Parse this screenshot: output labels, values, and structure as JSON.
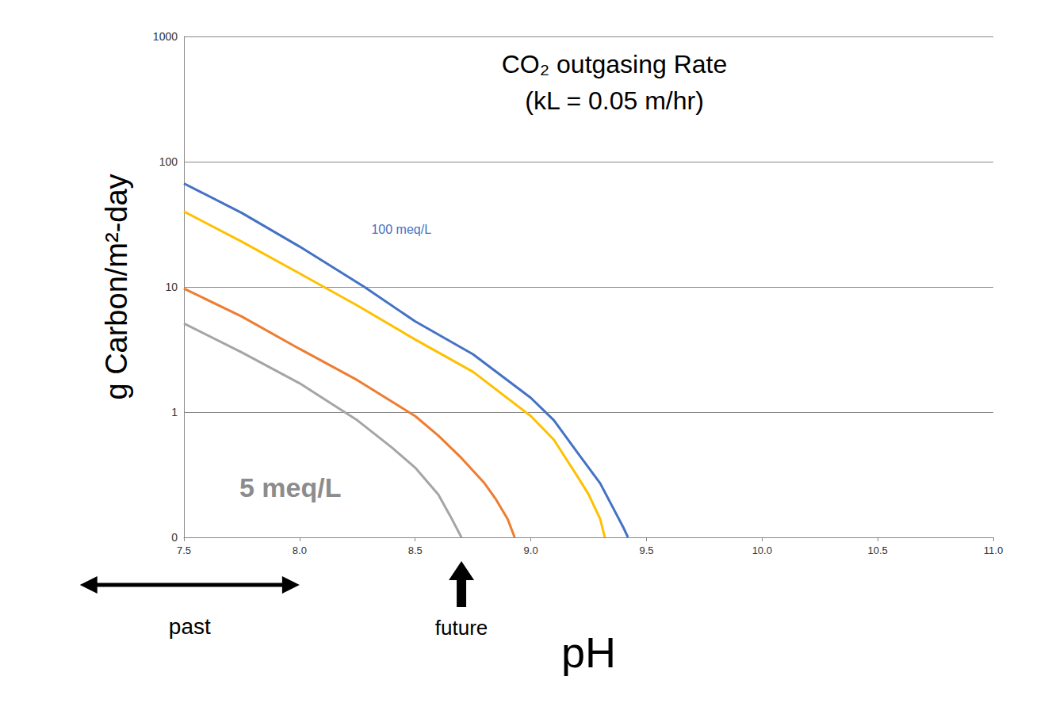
{
  "chart_data": {
    "type": "line",
    "title": "CO₂ outgasing Rate",
    "subtitle": "(kL = 0.05 m/hr)",
    "x_label": "pH",
    "y_label": "g Carbon/m²-day",
    "log": "y",
    "grid": "y",
    "xlim": [
      7.5,
      11.0
    ],
    "xticks": [
      7.5,
      {
        "value": 8,
        "label": "8.0"
      },
      8.5,
      {
        "value": 9,
        "label": "9.0"
      },
      9.5,
      {
        "value": 10,
        "label": "10.0"
      },
      10.5,
      {
        "value": 11,
        "label": "11.0"
      }
    ],
    "ylim": [
      0.1,
      1000
    ],
    "yticks": [
      {
        "value": 0.1,
        "label": "0"
      },
      1,
      10,
      100,
      1000
    ],
    "series": [
      {
        "color": "#4472c4",
        "x": [
          7.5,
          7.75,
          8.0,
          8.28,
          8.5,
          8.75,
          9.0,
          9.1,
          9.2,
          9.3,
          9.35,
          9.4,
          9.42
        ],
        "values": [
          67,
          39,
          21,
          10,
          5.3,
          2.9,
          1.3,
          0.86,
          0.48,
          0.27,
          0.18,
          0.12,
          0.1
        ]
      },
      {
        "color": "#ffc000",
        "x": [
          7.5,
          7.75,
          8.0,
          8.25,
          8.5,
          8.75,
          9.0,
          9.1,
          9.2,
          9.25,
          9.3,
          9.32
        ],
        "values": [
          40,
          23,
          12.8,
          7.1,
          3.8,
          2.1,
          0.93,
          0.6,
          0.31,
          0.22,
          0.14,
          0.1
        ]
      },
      {
        "color": "#ed7d31",
        "x": [
          7.5,
          7.75,
          8.0,
          8.25,
          8.5,
          8.6,
          8.7,
          8.8,
          8.85,
          8.9,
          8.93
        ],
        "values": [
          9.7,
          5.8,
          3.2,
          1.8,
          0.93,
          0.65,
          0.43,
          0.27,
          0.2,
          0.14,
          0.1
        ]
      },
      {
        "color": "#a5a5a5",
        "x": [
          7.5,
          7.75,
          8.0,
          8.25,
          8.4,
          8.5,
          8.6,
          8.65,
          8.7
        ],
        "values": [
          5.1,
          3.0,
          1.7,
          0.86,
          0.52,
          0.36,
          0.22,
          0.15,
          0.1
        ]
      }
    ],
    "annotations": [
      {
        "text": "100 meq/L",
        "x": 8.44,
        "y": 28.6,
        "color": "#4472c4"
      },
      {
        "text": "5 meq/L",
        "x": 7.96,
        "y": 0.25,
        "color": "#8c8c8c"
      },
      {
        "text": "past",
        "x": [
          7.05,
          8.0
        ]
      },
      {
        "text": "future",
        "x": 8.7
      }
    ]
  }
}
